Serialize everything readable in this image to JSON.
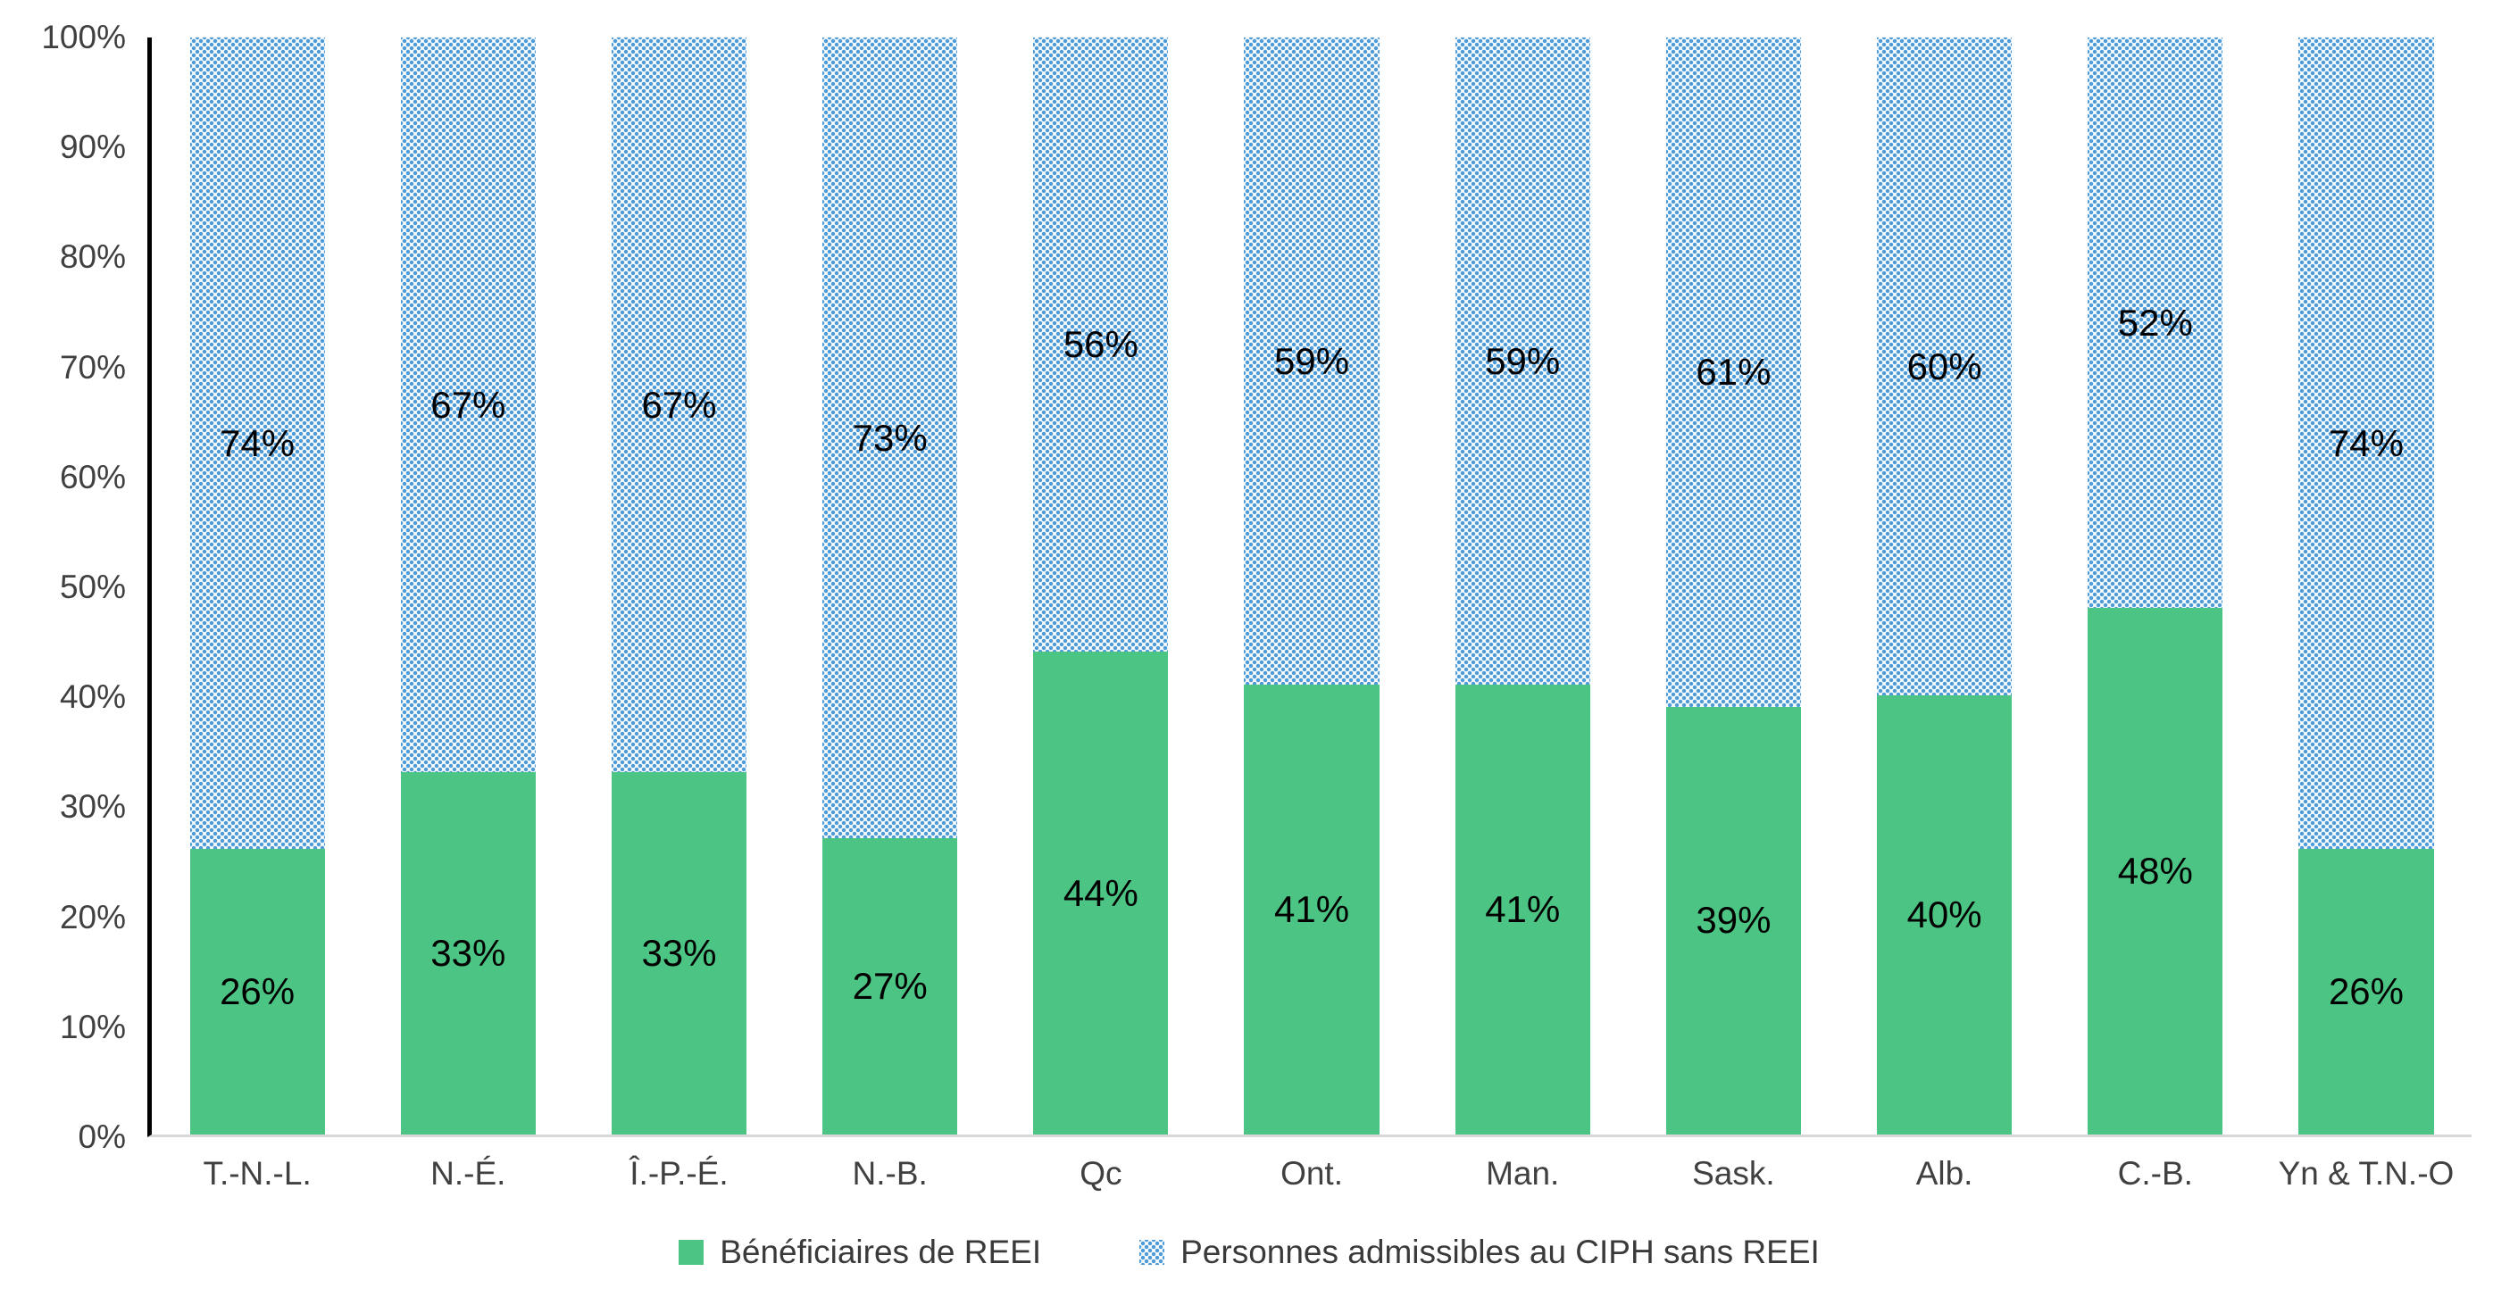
{
  "chart_data": {
    "type": "bar",
    "stacked": true,
    "percent_stacked": true,
    "title": "",
    "xlabel": "",
    "ylabel": "",
    "categories": [
      "T.-N.-L.",
      "N.-É.",
      "Î.-P.-É.",
      "N.-B.",
      "Qc",
      "Ont.",
      "Man.",
      "Sask.",
      "Alb.",
      "C.-B.",
      "Yn & T.N.-O"
    ],
    "series": [
      {
        "name": "Bénéficiaires de REEI",
        "color": "#4CC584",
        "pattern": "solid",
        "values": [
          26,
          33,
          33,
          27,
          44,
          41,
          41,
          39,
          40,
          48,
          26
        ]
      },
      {
        "name": "Personnes admissibles au CIPH sans REEI",
        "color": "#4D9BD8",
        "pattern": "dots",
        "values": [
          74,
          67,
          67,
          73,
          56,
          59,
          59,
          61,
          60,
          52,
          74
        ]
      }
    ],
    "data_label_suffix": "%",
    "ylim": [
      0,
      100
    ],
    "ytick_step": 10,
    "ytick_labels": [
      "0%",
      "10%",
      "20%",
      "30%",
      "40%",
      "50%",
      "60%",
      "70%",
      "80%",
      "90%",
      "100%"
    ],
    "grid": false,
    "legend_position": "bottom"
  },
  "colors": {
    "green_fill": "#4CC584",
    "blue_dot": "#4D9BD8",
    "axis_text": "#404040",
    "data_label_text": "#000000",
    "y_axis_line": "#000000",
    "x_baseline": "#D9D9D9",
    "background": "#FFFFFF"
  }
}
